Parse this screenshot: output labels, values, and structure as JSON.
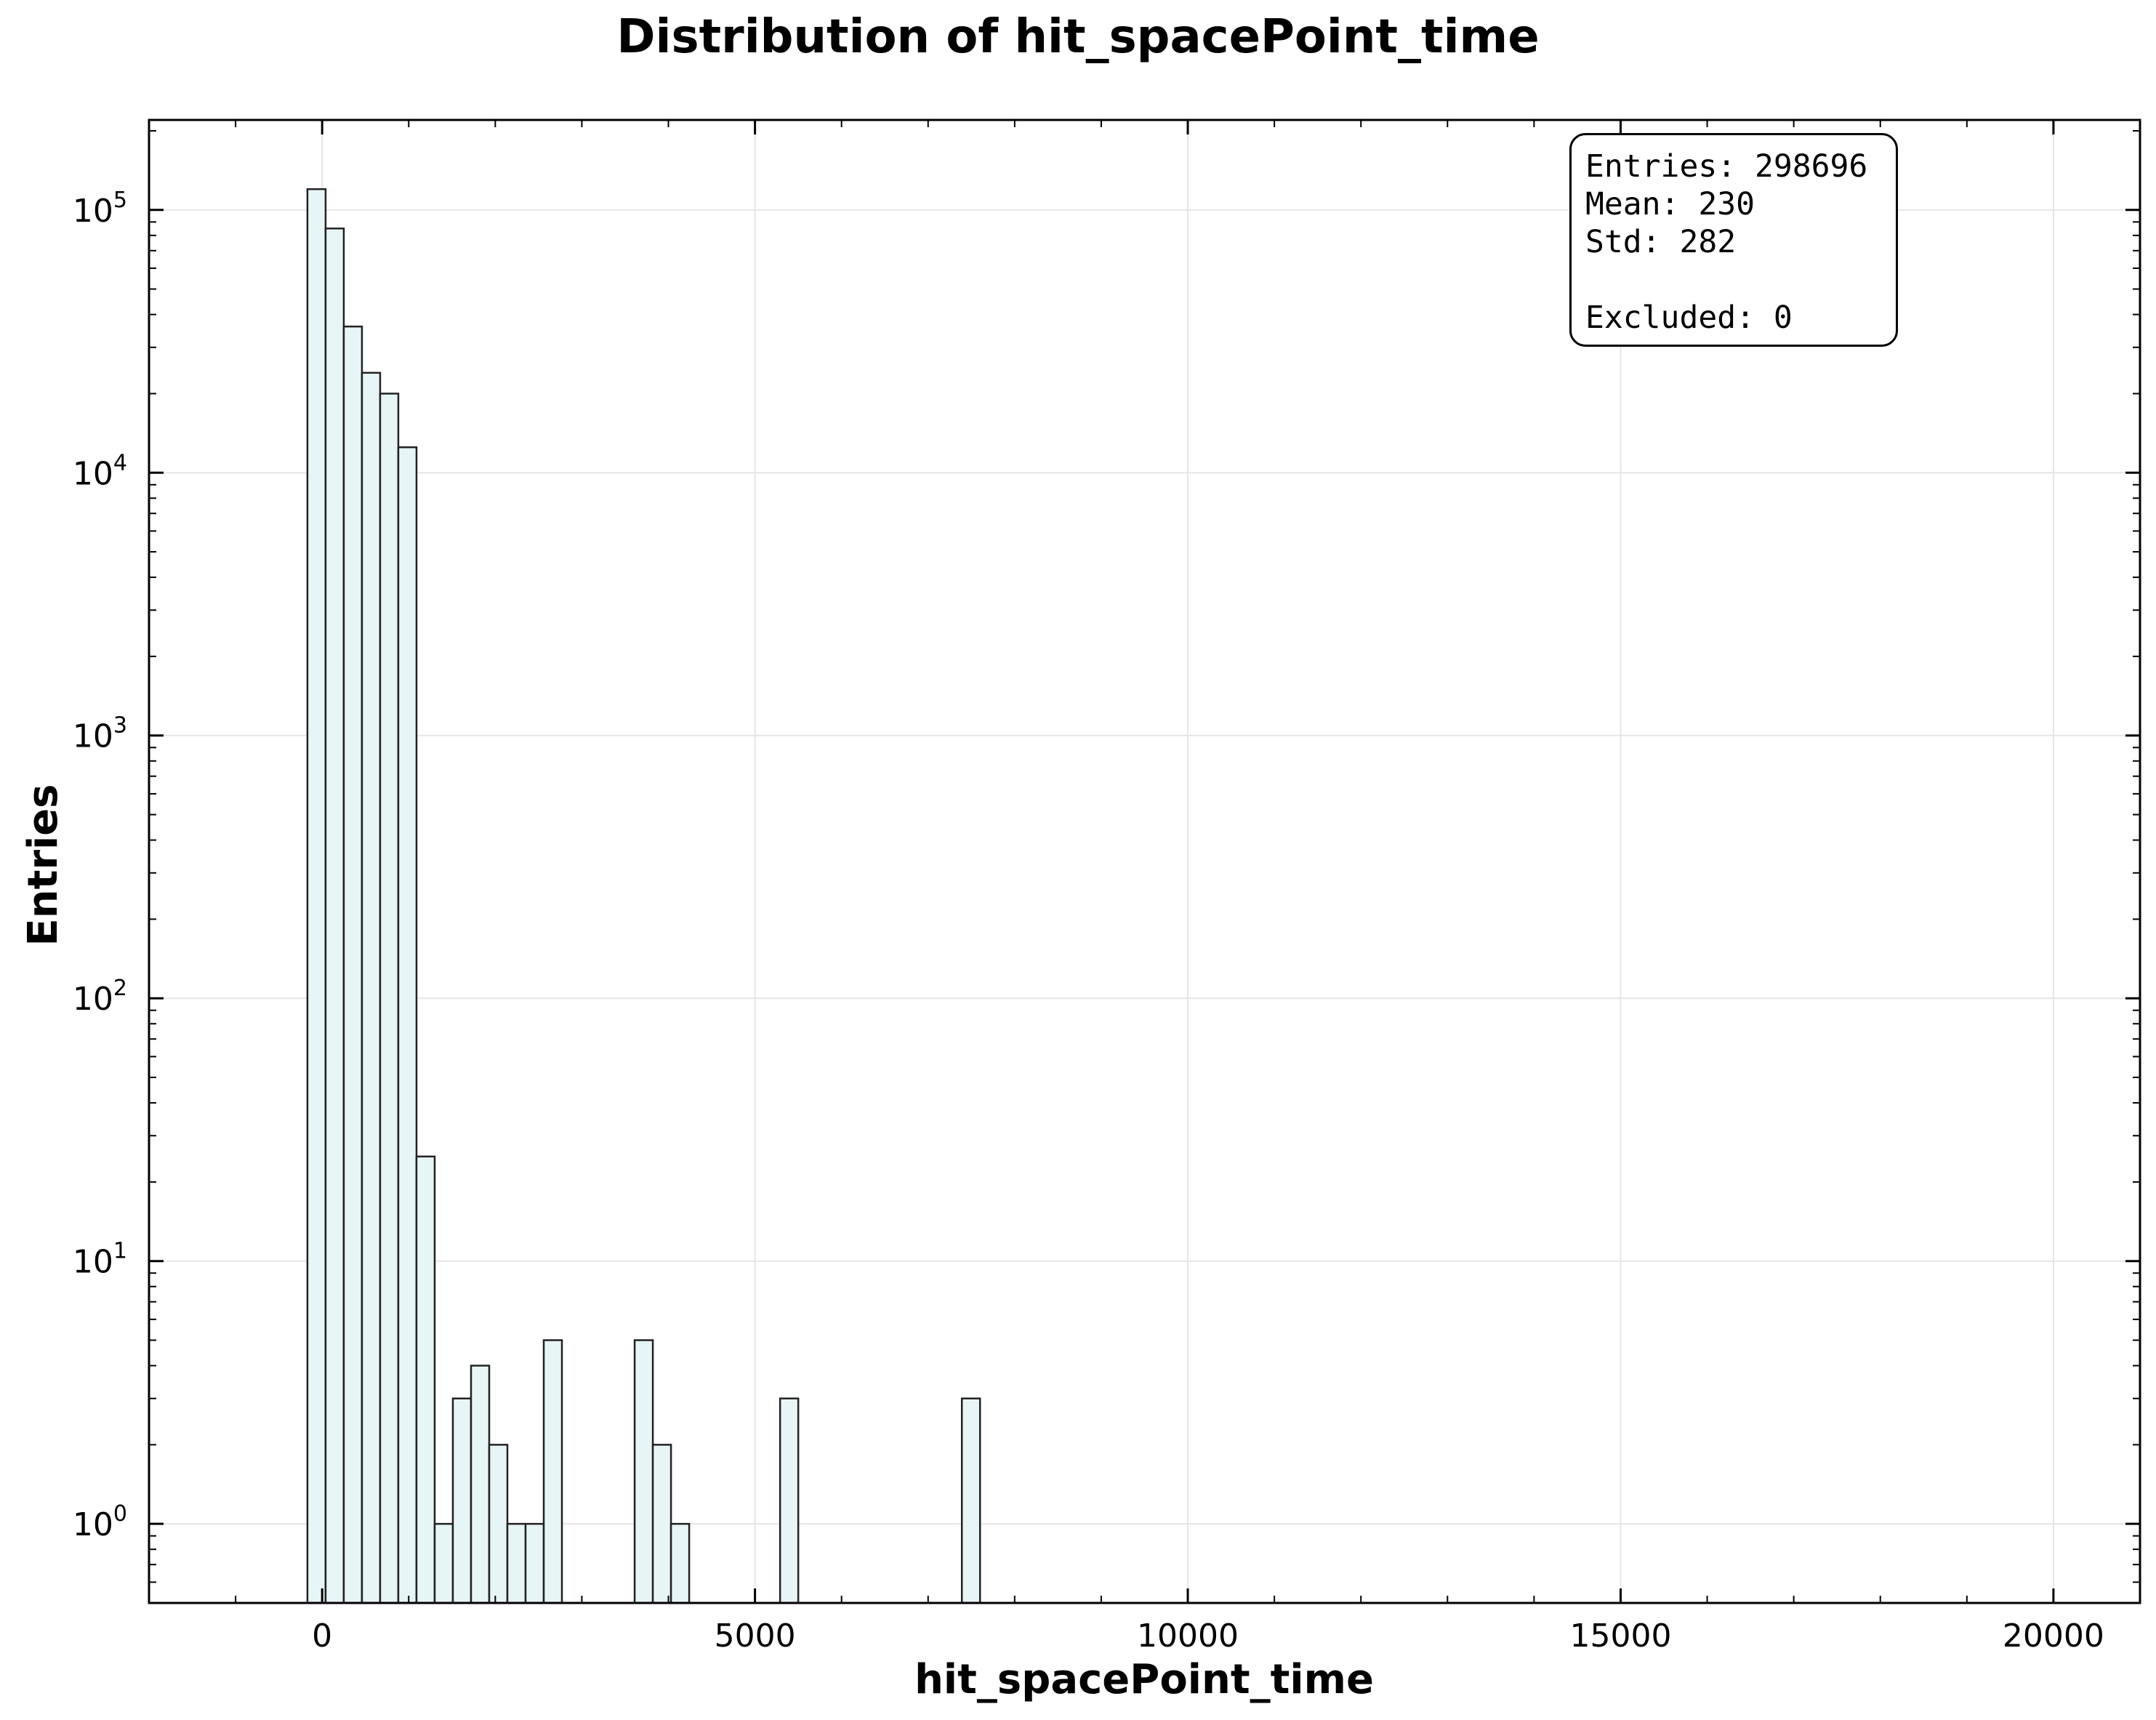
{
  "chart_data": {
    "type": "bar",
    "title": "Distribution of hit_spacePoint_time",
    "xlabel": "hit_spacePoint_time",
    "ylabel": "Entries",
    "y_scale": "log",
    "xlim": [
      -2000,
      21000
    ],
    "ylim": [
      0.5,
      220000
    ],
    "grid": true,
    "x_ticks": [
      0,
      5000,
      10000,
      15000,
      20000
    ],
    "x_tick_labels": [
      "0",
      "5000",
      "10000",
      "15000",
      "20000"
    ],
    "y_ticks": [
      1,
      10,
      100,
      1000,
      10000,
      100000
    ],
    "y_tick_labels": [
      {
        "base": "10",
        "exp": "0"
      },
      {
        "base": "10",
        "exp": "1"
      },
      {
        "base": "10",
        "exp": "2"
      },
      {
        "base": "10",
        "exp": "3"
      },
      {
        "base": "10",
        "exp": "4"
      },
      {
        "base": "10",
        "exp": "5"
      }
    ],
    "bins": [
      {
        "x0": -170,
        "x1": 40,
        "count": 120000
      },
      {
        "x0": 40,
        "x1": 250,
        "count": 85000
      },
      {
        "x0": 250,
        "x1": 460,
        "count": 36000
      },
      {
        "x0": 460,
        "x1": 670,
        "count": 24000
      },
      {
        "x0": 670,
        "x1": 880,
        "count": 20000
      },
      {
        "x0": 880,
        "x1": 1090,
        "count": 12500
      },
      {
        "x0": 1090,
        "x1": 1300,
        "count": 25
      },
      {
        "x0": 1300,
        "x1": 1510,
        "count": 1
      },
      {
        "x0": 1510,
        "x1": 1720,
        "count": 3
      },
      {
        "x0": 1720,
        "x1": 1930,
        "count": 4
      },
      {
        "x0": 1930,
        "x1": 2140,
        "count": 2
      },
      {
        "x0": 2140,
        "x1": 2350,
        "count": 1
      },
      {
        "x0": 2350,
        "x1": 2560,
        "count": 1
      },
      {
        "x0": 2560,
        "x1": 2770,
        "count": 5
      },
      {
        "x0": 3610,
        "x1": 3820,
        "count": 5
      },
      {
        "x0": 3820,
        "x1": 4030,
        "count": 2
      },
      {
        "x0": 4030,
        "x1": 4240,
        "count": 1
      },
      {
        "x0": 5290,
        "x1": 5500,
        "count": 3
      },
      {
        "x0": 7390,
        "x1": 7600,
        "count": 3
      }
    ],
    "bar_fill": "#e8f5f7",
    "bar_edge": "#222222",
    "grid_color": "#e6e6e6",
    "stats": {
      "entries": "Entries: 298696",
      "mean": "Mean: 230",
      "std": "Std: 282",
      "excluded": "Excluded: 0"
    }
  }
}
